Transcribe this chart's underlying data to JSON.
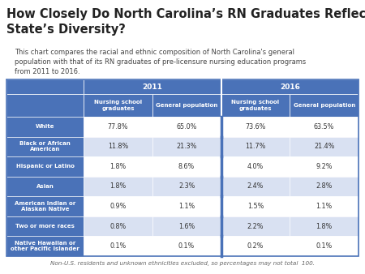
{
  "title": "How Closely Do North Carolina’s RN Graduates Reflect the\nState’s Diversity?",
  "subtitle": "This chart compares the racial and ethnic composition of North Carolina's general\npopulation with that of its RN graduates of pre-licensure nursing education programs\nfrom 2011 to 2016.",
  "footnote": "Non-U.S. residents and unknown ethnicities excluded, so percentages may not total  100.",
  "col_headers_sub": [
    "Nursing school\ngraduates",
    "General population",
    "Nursing school\ngraduates",
    "General population"
  ],
  "row_labels": [
    "White",
    "Black or African\nAmerican",
    "Hispanic or Latino",
    "Asian",
    "American Indian or\nAlaskan Native",
    "Two or more races",
    "Native Hawaiian or\nother Pacific Islander"
  ],
  "data": [
    [
      "77.8%",
      "65.0%",
      "73.6%",
      "63.5%"
    ],
    [
      "11.8%",
      "21.3%",
      "11.7%",
      "21.4%"
    ],
    [
      "1.8%",
      "8.6%",
      "4.0%",
      "9.2%"
    ],
    [
      "1.8%",
      "2.3%",
      "2.4%",
      "2.8%"
    ],
    [
      "0.9%",
      "1.1%",
      "1.5%",
      "1.1%"
    ],
    [
      "0.8%",
      "1.6%",
      "2.2%",
      "1.8%"
    ],
    [
      "0.1%",
      "0.1%",
      "0.2%",
      "0.1%"
    ]
  ],
  "header_bg": "#4a72b8",
  "header_text": "#ffffff",
  "row_label_bg": "#4a72b8",
  "row_label_text": "#ffffff",
  "cell_bg_light": "#d9e1f2",
  "cell_bg_white": "#ffffff",
  "title_color": "#222222",
  "subtitle_color": "#444444",
  "footnote_color": "#666666",
  "bg_color": "#ffffff",
  "divider_color": "#4a72b8"
}
